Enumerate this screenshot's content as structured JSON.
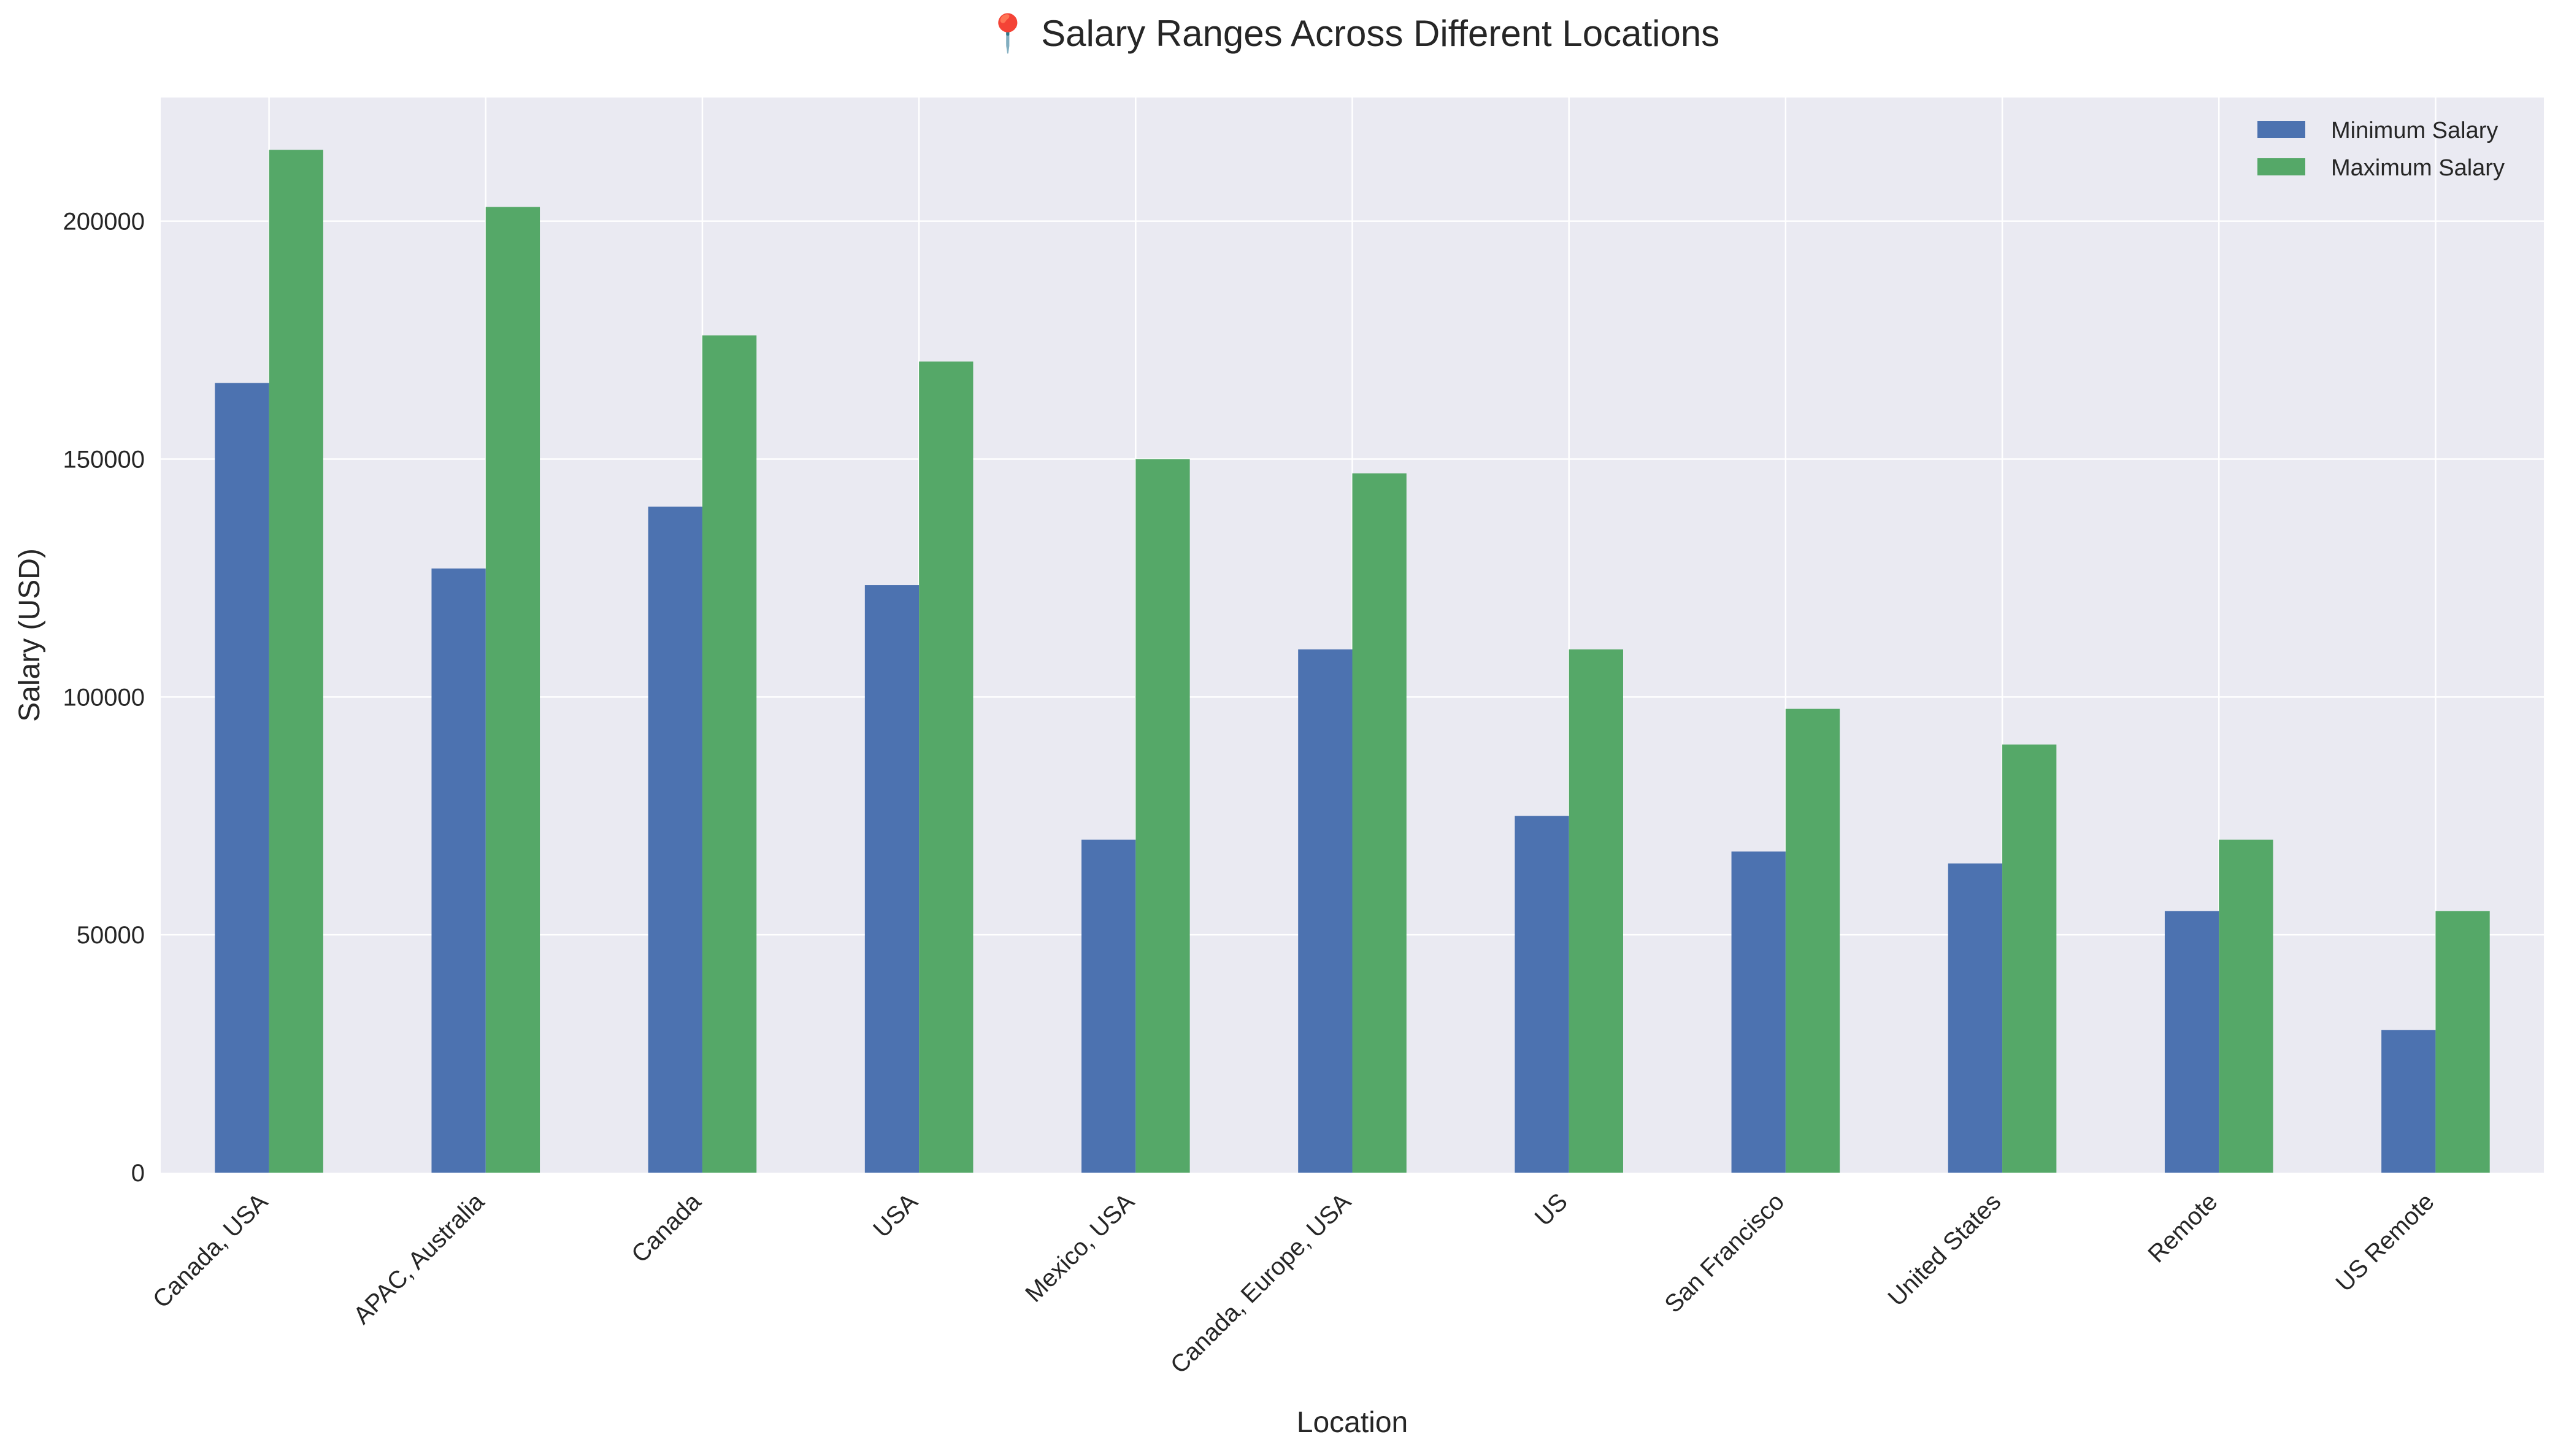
{
  "chart_data": {
    "type": "bar",
    "title": "📍 Salary Ranges Across Different Locations",
    "xlabel": "Location",
    "ylabel": "Salary (USD)",
    "categories": [
      "Canada, USA",
      "APAC, Australia",
      "Canada",
      "USA",
      "Mexico, USA",
      "Canada, Europe, USA",
      "US",
      "San Francisco",
      "United States",
      "Remote",
      "US Remote"
    ],
    "series": [
      {
        "name": "Minimum Salary",
        "color": "#4c72b0",
        "values": [
          166000,
          127000,
          140000,
          123500,
          70000,
          110000,
          75000,
          67500,
          65000,
          55000,
          30000
        ]
      },
      {
        "name": "Maximum Salary",
        "color": "#55a868",
        "values": [
          215000,
          203000,
          176000,
          170500,
          150000,
          147000,
          110000,
          97500,
          90000,
          70000,
          55000
        ]
      }
    ],
    "ylim": [
      0,
      226000
    ],
    "yticks": [
      0,
      50000,
      100000,
      150000,
      200000
    ],
    "grid": true,
    "legend_position": "top-right",
    "background_color": "#eaeaf2",
    "grid_color": "#ffffff"
  }
}
